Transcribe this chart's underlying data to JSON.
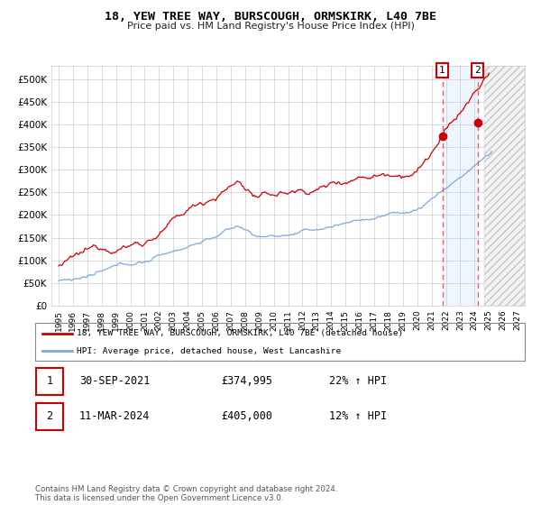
{
  "title": "18, YEW TREE WAY, BURSCOUGH, ORMSKIRK, L40 7BE",
  "subtitle": "Price paid vs. HM Land Registry's House Price Index (HPI)",
  "xlim_start": 1994.5,
  "xlim_end": 2027.5,
  "ylim": [
    0,
    530000
  ],
  "yticks": [
    0,
    50000,
    100000,
    150000,
    200000,
    250000,
    300000,
    350000,
    400000,
    450000,
    500000
  ],
  "ytick_labels": [
    "£0",
    "£50K",
    "£100K",
    "£150K",
    "£200K",
    "£250K",
    "£300K",
    "£350K",
    "£400K",
    "£450K",
    "£500K"
  ],
  "xticks": [
    1995,
    1996,
    1997,
    1998,
    1999,
    2000,
    2001,
    2002,
    2003,
    2004,
    2005,
    2006,
    2007,
    2008,
    2009,
    2010,
    2011,
    2012,
    2013,
    2014,
    2015,
    2016,
    2017,
    2018,
    2019,
    2020,
    2021,
    2022,
    2023,
    2024,
    2025,
    2026,
    2027
  ],
  "red_line_color": "#cc0000",
  "blue_line_color": "#7aaadd",
  "point1_x": 2021.75,
  "point1_y": 374995,
  "point2_x": 2024.2,
  "point2_y": 405000,
  "vline1_x": 2021.75,
  "vline2_x": 2024.2,
  "shade_start": 2021.75,
  "shade_end": 2024.2,
  "future_start": 2024.7,
  "legend_label_red": "18, YEW TREE WAY, BURSCOUGH, ORMSKIRK, L40 7BE (detached house)",
  "legend_label_blue": "HPI: Average price, detached house, West Lancashire",
  "table_row1": [
    "1",
    "30-SEP-2021",
    "£374,995",
    "22% ↑ HPI"
  ],
  "table_row2": [
    "2",
    "11-MAR-2024",
    "£405,000",
    "12% ↑ HPI"
  ],
  "footer": "Contains HM Land Registry data © Crown copyright and database right 2024.\nThis data is licensed under the Open Government Licence v3.0.",
  "bg_color": "#ffffff",
  "grid_color": "#cccccc"
}
